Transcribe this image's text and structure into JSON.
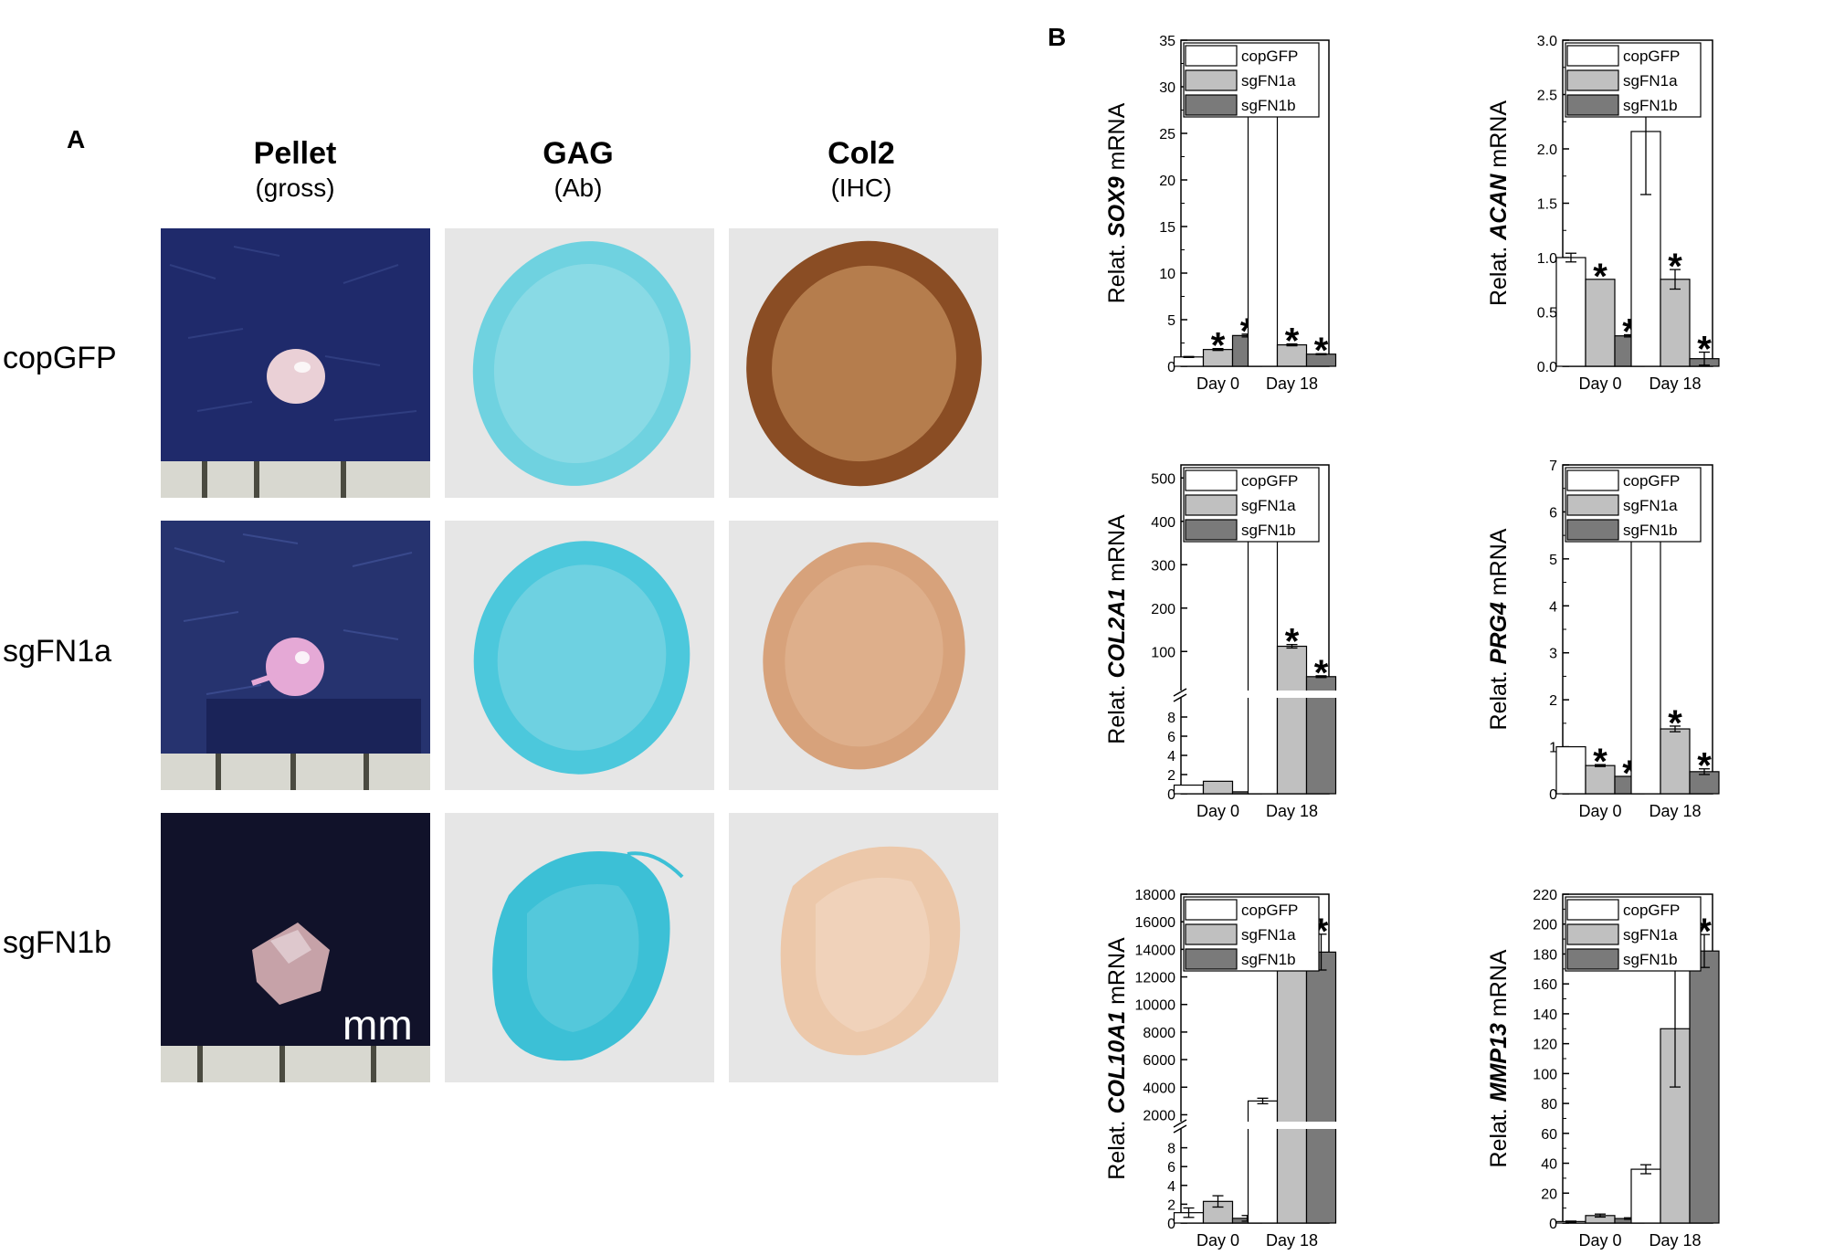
{
  "panel_a": {
    "letter": "A",
    "columns": [
      {
        "title": "Pellet",
        "subtitle": "(gross)"
      },
      {
        "title": "GAG",
        "subtitle": "(Ab)"
      },
      {
        "title": "Col2",
        "subtitle": "(IHC)"
      }
    ],
    "rows": [
      "copGFP",
      "sgFN1a",
      "sgFN1b"
    ],
    "scale_label": "mm"
  },
  "panel_b": {
    "letter": "B"
  },
  "colors": {
    "copGFP": "#ffffff",
    "sgFN1a": "#c0c0c0",
    "sgFN1b": "#7a7a7a",
    "pellet_bg": "#1f2a6b",
    "alcian_blue": "#3fc0d6",
    "col2_brown": "#a86a3c"
  },
  "chart_data": [
    {
      "type": "bar",
      "ylabel_prefix": "Relat. ",
      "ylabel_gene": "SOX9",
      "ylabel_suffix": " mRNA",
      "categories": [
        "Day 0",
        "Day 18"
      ],
      "legend": [
        "copGFP",
        "sgFN1a",
        "sgFN1b"
      ],
      "legend_position": "top-left",
      "ylim": [
        0,
        35
      ],
      "yticks": [
        "0",
        "5",
        "10",
        "15",
        "20",
        "25",
        "30",
        "35"
      ],
      "series": [
        {
          "name": "copGFP",
          "values": [
            1.0,
            31.5
          ],
          "errors": [
            0.05,
            0.8
          ]
        },
        {
          "name": "sgFN1a",
          "values": [
            1.8,
            2.3
          ],
          "errors": [
            0.1,
            0.1
          ]
        },
        {
          "name": "sgFN1b",
          "values": [
            3.3,
            1.3
          ],
          "errors": [
            0.15,
            0.05
          ]
        }
      ],
      "significance": [
        [
          false,
          false
        ],
        [
          true,
          true
        ],
        [
          true,
          true
        ]
      ],
      "star": "*"
    },
    {
      "type": "bar",
      "ylabel_prefix": "Relat. ",
      "ylabel_gene": "ACAN",
      "ylabel_suffix": " mRNA",
      "categories": [
        "Day 0",
        "Day 18"
      ],
      "legend": [
        "copGFP",
        "sgFN1a",
        "sgFN1b"
      ],
      "legend_position": "top-left",
      "ylim": [
        0,
        3.0
      ],
      "yticks": [
        "0.0",
        "0.5",
        "1.0",
        "1.5",
        "2.0",
        "2.5",
        "3.0"
      ],
      "series": [
        {
          "name": "copGFP",
          "values": [
            1.0,
            2.16
          ],
          "errors": [
            0.04,
            0.58
          ]
        },
        {
          "name": "sgFN1a",
          "values": [
            0.8,
            0.8
          ],
          "errors": [
            0.0,
            0.09
          ]
        },
        {
          "name": "sgFN1b",
          "values": [
            0.28,
            0.07
          ],
          "errors": [
            0.01,
            0.06
          ]
        }
      ],
      "significance": [
        [
          false,
          false
        ],
        [
          true,
          true
        ],
        [
          true,
          true
        ]
      ],
      "star": "*"
    },
    {
      "type": "bar",
      "ylabel_prefix": "Relat. ",
      "ylabel_gene": "COL2A1",
      "ylabel_suffix": " mRNA",
      "categories": [
        "Day 0",
        "Day 18"
      ],
      "legend": [
        "copGFP",
        "sgFN1a",
        "sgFN1b"
      ],
      "legend_position": "top-left",
      "axis_break": true,
      "ylim_lower": [
        0,
        10
      ],
      "ylim_upper": [
        10,
        530
      ],
      "yticks_lower": [
        "0",
        "2",
        "4",
        "6",
        "8"
      ],
      "yticks_upper": [
        "100",
        "200",
        "300",
        "400",
        "500"
      ],
      "series": [
        {
          "name": "copGFP",
          "values": [
            0.9,
            475
          ],
          "errors": [
            0.0,
            20
          ]
        },
        {
          "name": "sgFN1a",
          "values": [
            1.3,
            112
          ],
          "errors": [
            0.0,
            4
          ]
        },
        {
          "name": "sgFN1b",
          "values": [
            0.2,
            42
          ],
          "errors": [
            0.0,
            2
          ]
        }
      ],
      "significance": [
        [
          false,
          false
        ],
        [
          false,
          true
        ],
        [
          false,
          true
        ]
      ],
      "star": "*"
    },
    {
      "type": "bar",
      "ylabel_prefix": "Relat. ",
      "ylabel_gene": "PRG4",
      "ylabel_suffix": " mRNA",
      "categories": [
        "Day 0",
        "Day 18"
      ],
      "legend": [
        "copGFP",
        "sgFN1a",
        "sgFN1b"
      ],
      "legend_position": "top-left",
      "ylim": [
        0,
        7
      ],
      "yticks": [
        "0",
        "1",
        "2",
        "3",
        "4",
        "5",
        "6",
        "7"
      ],
      "series": [
        {
          "name": "copGFP",
          "values": [
            1.0,
            5.75
          ],
          "errors": [
            0.0,
            0.38
          ]
        },
        {
          "name": "sgFN1a",
          "values": [
            0.6,
            1.38
          ],
          "errors": [
            0.02,
            0.06
          ]
        },
        {
          "name": "sgFN1b",
          "values": [
            0.37,
            0.47
          ],
          "errors": [
            0.0,
            0.06
          ]
        }
      ],
      "significance": [
        [
          false,
          false
        ],
        [
          true,
          true
        ],
        [
          true,
          true
        ]
      ],
      "star": "*"
    },
    {
      "type": "bar",
      "ylabel_prefix": "Relat. ",
      "ylabel_gene": "COL10A1",
      "ylabel_suffix": " mRNA",
      "categories": [
        "Day 0",
        "Day 18"
      ],
      "legend": [
        "copGFP",
        "sgFN1a",
        "sgFN1b"
      ],
      "legend_position": "top-left",
      "axis_break": true,
      "ylim_lower": [
        0,
        10
      ],
      "ylim_upper": [
        1500,
        18000
      ],
      "yticks_lower": [
        "0",
        "2",
        "4",
        "6",
        "8"
      ],
      "yticks_upper": [
        "2000",
        "4000",
        "6000",
        "8000",
        "10000",
        "12000",
        "14000",
        "16000",
        "18000"
      ],
      "series": [
        {
          "name": "copGFP",
          "values": [
            1.1,
            3000
          ],
          "errors": [
            0.5,
            200
          ]
        },
        {
          "name": "sgFN1a",
          "values": [
            2.3,
            13500
          ],
          "errors": [
            0.6,
            700
          ]
        },
        {
          "name": "sgFN1b",
          "values": [
            0.5,
            13800
          ],
          "errors": [
            0.3,
            1300
          ]
        }
      ],
      "significance": [
        [
          false,
          false
        ],
        [
          false,
          true
        ],
        [
          false,
          true
        ]
      ],
      "star": "*"
    },
    {
      "type": "bar",
      "ylabel_prefix": "Relat. ",
      "ylabel_gene": "MMP13",
      "ylabel_suffix": " mRNA",
      "categories": [
        "Day 0",
        "Day 18"
      ],
      "legend": [
        "copGFP",
        "sgFN1a",
        "sgFN1b"
      ],
      "legend_position": "top-left",
      "ylim": [
        0,
        220
      ],
      "yticks": [
        "0",
        "20",
        "40",
        "60",
        "80",
        "100",
        "120",
        "140",
        "160",
        "180",
        "200",
        "220"
      ],
      "series": [
        {
          "name": "copGFP",
          "values": [
            1,
            36
          ],
          "errors": [
            0.3,
            3
          ]
        },
        {
          "name": "sgFN1a",
          "values": [
            5,
            130
          ],
          "errors": [
            1,
            39
          ]
        },
        {
          "name": "sgFN1b",
          "values": [
            3,
            182
          ],
          "errors": [
            0.5,
            11
          ]
        }
      ],
      "significance": [
        [
          false,
          false
        ],
        [
          false,
          true
        ],
        [
          false,
          true
        ]
      ],
      "star": "*"
    }
  ]
}
